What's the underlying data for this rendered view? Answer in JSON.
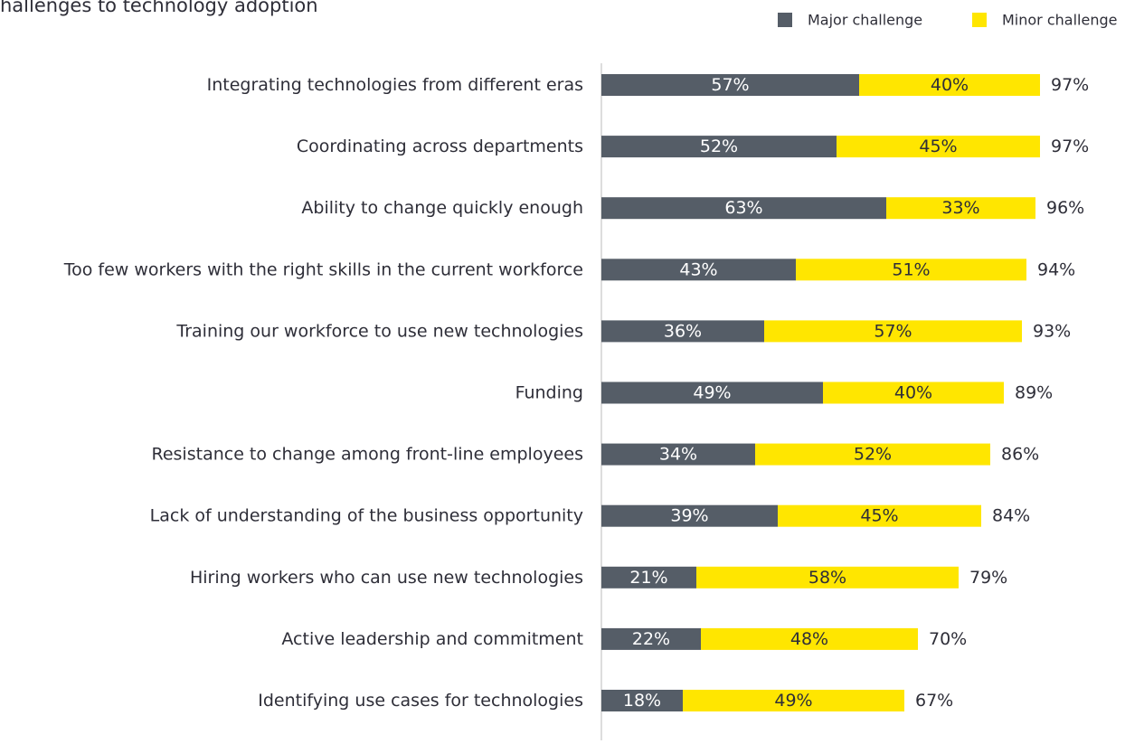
{
  "chart_data": {
    "type": "stacked_bar_horizontal",
    "title": "hallenges to technology adoption",
    "categories": [
      "Integrating technologies from different eras",
      "Coordinating across departments",
      "Ability to change quickly enough",
      "Too few workers with the right skills in the current workforce",
      "Training our workforce to use new technologies",
      "Funding",
      "Resistance to change among front-line employees",
      "Lack of understanding of the business opportunity",
      "Hiring workers who can use new technologies",
      "Active leadership and commitment",
      "Identifying use cases for technologies"
    ],
    "series": [
      {
        "name": "Major challenge",
        "color": "#555d67",
        "label_color": "#ffffff",
        "values": [
          57,
          52,
          63,
          43,
          36,
          49,
          34,
          39,
          21,
          22,
          18
        ],
        "value_labels": [
          "57%",
          "52%",
          "63%",
          "43%",
          "36%",
          "49%",
          "34%",
          "39%",
          "21%",
          "22%",
          "18%"
        ]
      },
      {
        "name": "Minor challenge",
        "color": "#ffe600",
        "label_color": "#2e2e38",
        "values": [
          40,
          45,
          33,
          51,
          57,
          40,
          52,
          45,
          58,
          48,
          49
        ],
        "value_labels": [
          "40%",
          "45%",
          "33%",
          "51%",
          "57%",
          "40%",
          "52%",
          "45%",
          "58%",
          "48%",
          "49%"
        ]
      }
    ],
    "totals": [
      97,
      97,
      96,
      94,
      93,
      89,
      86,
      84,
      79,
      70,
      67
    ],
    "total_labels": [
      "97%",
      "97%",
      "96%",
      "94%",
      "93%",
      "89%",
      "86%",
      "84%",
      "79%",
      "70%",
      "67%"
    ],
    "xlim": [
      0,
      100
    ]
  }
}
